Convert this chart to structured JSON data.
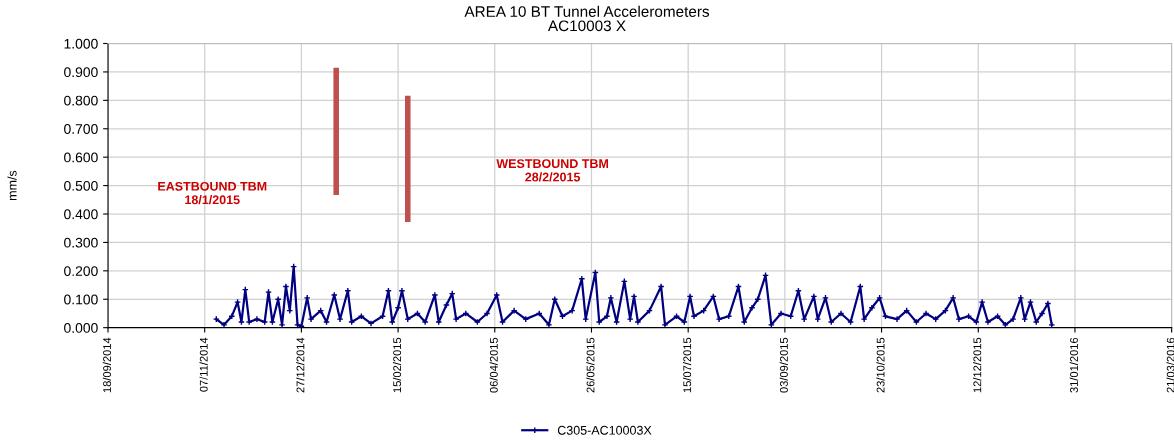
{
  "chart_data": {
    "type": "line",
    "title": "AREA 10 BT Tunnel Accelerometers",
    "subtitle": "AC10003 X",
    "ylabel": "mm/s",
    "xlim": [
      "2014-09-18",
      "2016-03-21"
    ],
    "xticks": [
      {
        "value": "2014-09-18",
        "label": "18/09/2014"
      },
      {
        "value": "2014-11-07",
        "label": "07/11/2014"
      },
      {
        "value": "2014-12-27",
        "label": "27/12/2014"
      },
      {
        "value": "2015-02-15",
        "label": "15/02/2015"
      },
      {
        "value": "2015-04-06",
        "label": "06/04/2015"
      },
      {
        "value": "2015-05-26",
        "label": "26/05/2015"
      },
      {
        "value": "2015-07-15",
        "label": "15/07/2015"
      },
      {
        "value": "2015-09-03",
        "label": "03/09/2015"
      },
      {
        "value": "2015-10-23",
        "label": "23/10/2015"
      },
      {
        "value": "2015-12-12",
        "label": "12/12/2015"
      },
      {
        "value": "2016-01-31",
        "label": "31/01/2016"
      },
      {
        "value": "2016-03-21",
        "label": "21/03/2016"
      }
    ],
    "ylim": [
      0,
      1
    ],
    "yticks": [
      {
        "value": 0,
        "label": "0.000"
      },
      {
        "value": 0.1,
        "label": "0.100"
      },
      {
        "value": 0.2,
        "label": "0.200"
      },
      {
        "value": 0.3,
        "label": "0.300"
      },
      {
        "value": 0.4,
        "label": "0.400"
      },
      {
        "value": 0.5,
        "label": "0.500"
      },
      {
        "value": 0.6,
        "label": "0.600"
      },
      {
        "value": 0.7,
        "label": "0.700"
      },
      {
        "value": 0.8,
        "label": "0.800"
      },
      {
        "value": 0.9,
        "label": "0.900"
      },
      {
        "value": 1,
        "label": "1.000"
      }
    ],
    "grid": true,
    "legend": "bottom",
    "marker": "cross",
    "line_style": "solid",
    "series": [
      {
        "name": "C305-AC10003X",
        "color": "#000080",
        "x": [
          "2014-11-13",
          "2014-11-17",
          "2014-11-21",
          "2014-11-24",
          "2014-11-26",
          "2014-11-28",
          "2014-11-30",
          "2014-12-04",
          "2014-12-08",
          "2014-12-10",
          "2014-12-12",
          "2014-12-15",
          "2014-12-17",
          "2014-12-19",
          "2014-12-21",
          "2014-12-23",
          "2014-12-25",
          "2014-12-27",
          "2014-12-30",
          "2015-01-01",
          "2015-01-06",
          "2015-01-09",
          "2015-01-13",
          "2015-01-16",
          "2015-01-20",
          "2015-01-22",
          "2015-01-27",
          "2015-02-01",
          "2015-02-07",
          "2015-02-10",
          "2015-02-12",
          "2015-02-15",
          "2015-02-17",
          "2015-02-20",
          "2015-02-25",
          "2015-03-01",
          "2015-03-06",
          "2015-03-08",
          "2015-03-12",
          "2015-03-15",
          "2015-03-17",
          "2015-03-22",
          "2015-03-28",
          "2015-04-02",
          "2015-04-07",
          "2015-04-10",
          "2015-04-16",
          "2015-04-22",
          "2015-04-29",
          "2015-05-04",
          "2015-05-07",
          "2015-05-11",
          "2015-05-16",
          "2015-05-21",
          "2015-05-23",
          "2015-05-28",
          "2015-05-30",
          "2015-06-03",
          "2015-06-05",
          "2015-06-08",
          "2015-06-12",
          "2015-06-15",
          "2015-06-17",
          "2015-06-19",
          "2015-06-25",
          "2015-07-01",
          "2015-07-03",
          "2015-07-09",
          "2015-07-13",
          "2015-07-16",
          "2015-07-18",
          "2015-07-23",
          "2015-07-28",
          "2015-07-31",
          "2015-08-05",
          "2015-08-10",
          "2015-08-13",
          "2015-08-17",
          "2015-08-20",
          "2015-08-24",
          "2015-08-27",
          "2015-09-01",
          "2015-09-06",
          "2015-09-10",
          "2015-09-13",
          "2015-09-18",
          "2015-09-20",
          "2015-09-24",
          "2015-09-27",
          "2015-10-02",
          "2015-10-07",
          "2015-10-12",
          "2015-10-14",
          "2015-10-18",
          "2015-10-22",
          "2015-10-25",
          "2015-10-31",
          "2015-11-05",
          "2015-11-10",
          "2015-11-15",
          "2015-11-20",
          "2015-11-25",
          "2015-11-29",
          "2015-12-02",
          "2015-12-07",
          "2015-12-11",
          "2015-12-14",
          "2015-12-17",
          "2015-12-22",
          "2015-12-26",
          "2015-12-30",
          "2016-01-03",
          "2016-01-05",
          "2016-01-08",
          "2016-01-11",
          "2016-01-14",
          "2016-01-17",
          "2016-01-19"
        ],
        "values": [
          0.03,
          0.01,
          0.04,
          0.09,
          0.02,
          0.134,
          0.02,
          0.03,
          0.02,
          0.125,
          0.02,
          0.1,
          0.01,
          0.145,
          0.06,
          0.215,
          0.01,
          0.005,
          0.105,
          0.03,
          0.06,
          0.02,
          0.115,
          0.03,
          0.13,
          0.02,
          0.04,
          0.015,
          0.04,
          0.13,
          0.02,
          0.07,
          0.13,
          0.03,
          0.05,
          0.02,
          0.115,
          0.02,
          0.08,
          0.12,
          0.03,
          0.05,
          0.02,
          0.05,
          0.115,
          0.02,
          0.06,
          0.03,
          0.05,
          0.01,
          0.1,
          0.04,
          0.06,
          0.172,
          0.03,
          0.194,
          0.02,
          0.04,
          0.105,
          0.02,
          0.163,
          0.03,
          0.11,
          0.02,
          0.06,
          0.145,
          0.01,
          0.04,
          0.02,
          0.11,
          0.04,
          0.06,
          0.11,
          0.03,
          0.04,
          0.145,
          0.02,
          0.07,
          0.1,
          0.184,
          0.01,
          0.05,
          0.04,
          0.13,
          0.03,
          0.11,
          0.03,
          0.105,
          0.02,
          0.05,
          0.02,
          0.145,
          0.03,
          0.07,
          0.105,
          0.04,
          0.03,
          0.06,
          0.02,
          0.05,
          0.03,
          0.06,
          0.105,
          0.03,
          0.04,
          0.02,
          0.09,
          0.02,
          0.04,
          0.01,
          0.03,
          0.105,
          0.03,
          0.09,
          0.02,
          0.05,
          0.085,
          0.01
        ]
      },
      {
        "type": "line",
        "color": "#c0504d",
        "marker": "none",
        "x": [
          "2015-01-14",
          "2015-01-14"
        ],
        "values": [
          0.477,
          0.905
        ]
      },
      {
        "type": "line",
        "color": "#c0504d",
        "marker": "none",
        "x": [
          "2015-02-20",
          "2015-02-20"
        ],
        "values": [
          0.382,
          0.806
        ]
      }
    ],
    "annotations": [
      "EASTBOUND TBM\n18/1/2015",
      "WESTBOUND TBM\n28/2/2015"
    ]
  }
}
